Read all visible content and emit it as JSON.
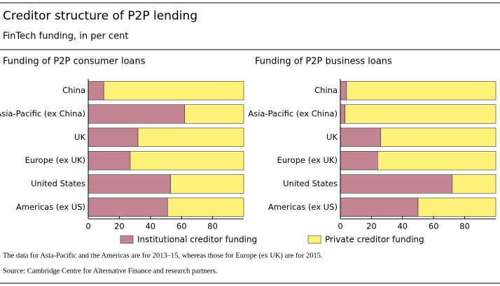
{
  "title": "Creditor structure of P2P lending",
  "subtitle": "FinTech funding, in per cent",
  "note": "The data for Asia-Pacific and the Americas are for 2013–15, whereas those for Europe (ex UK) are for 2015.",
  "source": "Source: Cambridge Centre for Alternative Finance and research partners.",
  "chart_data": [
    {
      "type": "bar",
      "orientation": "horizontal",
      "stacked": true,
      "title": "Funding of P2P consumer loans",
      "categories": [
        "China",
        "Asia-Pacific (ex China)",
        "UK",
        "Europe (ex UK)",
        "United States",
        "Americas (ex US)"
      ],
      "series": [
        {
          "name": "Institutional creditor funding",
          "color": "#c48593",
          "values": [
            10,
            62,
            32,
            27,
            53,
            51
          ]
        },
        {
          "name": "Private creditor funding",
          "color": "#fff27a",
          "values": [
            90,
            38,
            68,
            73,
            47,
            49
          ]
        }
      ],
      "xlim": [
        0,
        100
      ],
      "xticks": [
        0,
        20,
        40,
        60,
        80
      ],
      "legend": "bottom"
    },
    {
      "type": "bar",
      "orientation": "horizontal",
      "stacked": true,
      "title": "Funding of P2P business loans",
      "categories": [
        "China",
        "Asia-Pacific (ex China)",
        "UK",
        "Europe (ex UK)",
        "United States",
        "Americas (ex US)"
      ],
      "series": [
        {
          "name": "Institutional creditor funding",
          "color": "#c48593",
          "values": [
            4,
            3,
            26,
            24,
            72,
            50
          ]
        },
        {
          "name": "Private creditor funding",
          "color": "#fff27a",
          "values": [
            96,
            97,
            74,
            76,
            28,
            50
          ]
        }
      ],
      "xlim": [
        0,
        100
      ],
      "xticks": [
        0,
        20,
        40,
        60,
        80
      ],
      "legend": "bottom"
    }
  ]
}
